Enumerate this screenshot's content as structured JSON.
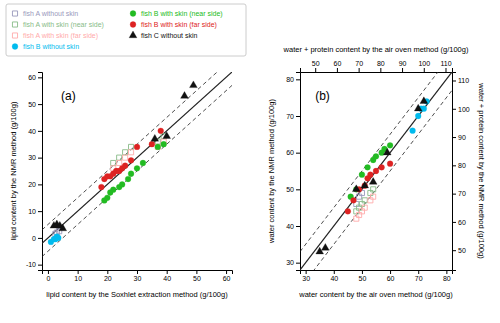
{
  "chart_data": [
    {
      "type": "scatter",
      "annotation": "(a)",
      "xlabel": "lipid content by the Soxhlet extraction method (g/100g)",
      "ylabel": "lipid content by the NMR method (g/100g)",
      "xlim": [
        -2,
        62
      ],
      "ylim": [
        -12,
        62
      ],
      "xticks": [
        0,
        10,
        20,
        30,
        40,
        50,
        60
      ],
      "yticks": [
        -10,
        0,
        10,
        20,
        30,
        40,
        50,
        60
      ],
      "legend": "upper left",
      "reference_lines": [
        {
          "slope": 1,
          "intercept": 0,
          "line_style": "solid"
        },
        {
          "slope": 1,
          "intercept": 5,
          "line_style": "dashed"
        },
        {
          "slope": 1,
          "intercept": -5,
          "line_style": "dashed"
        }
      ],
      "series": [
        {
          "name": "fish A without skin",
          "color": "#9999bb",
          "marker": "open-square",
          "x": [
            2.5,
            3.0,
            3.8
          ],
          "values": [
            1.5,
            2.0,
            2.5
          ]
        },
        {
          "name": "fish A with skin (near side)",
          "color": "#88bb88",
          "marker": "open-square",
          "x": [
            22,
            24,
            26,
            28,
            37,
            39
          ],
          "values": [
            28,
            30,
            32,
            34,
            36,
            38
          ]
        },
        {
          "name": "fish A with skin (far side)",
          "color": "#ffaaaa",
          "marker": "open-square",
          "x": [
            22,
            24,
            26,
            28,
            37,
            39
          ],
          "values": [
            26,
            28,
            30,
            32,
            34,
            36
          ]
        },
        {
          "name": "fish B without skin",
          "color": "#00bbee",
          "marker": "circle",
          "x": [
            1.0,
            2.0,
            2.5,
            3.0,
            3.5
          ],
          "values": [
            -1.5,
            -0.5,
            -0.5,
            0.5,
            0.0
          ]
        },
        {
          "name": "fish B with skin (near side)",
          "color": "#22bb22",
          "marker": "circle",
          "x": [
            19,
            20,
            21,
            22,
            24,
            25,
            27,
            28,
            30,
            32,
            37,
            39
          ],
          "values": [
            14,
            15,
            17,
            18,
            19,
            20,
            22,
            24,
            26,
            28,
            34,
            35
          ]
        },
        {
          "name": "fish B with skin (far side)",
          "color": "#dd2222",
          "marker": "circle",
          "x": [
            18,
            19,
            20,
            21,
            22,
            23,
            24,
            25,
            26,
            28,
            30,
            35,
            38
          ],
          "values": [
            19,
            22,
            23,
            23,
            24,
            25,
            25,
            26,
            27,
            29,
            34,
            35,
            40
          ]
        },
        {
          "name": "fish C without skin",
          "color": "#111111",
          "marker": "triangle",
          "x": [
            2.0,
            3.0,
            4.0,
            5.0,
            36,
            40,
            46,
            49
          ],
          "values": [
            4.5,
            5.0,
            4.5,
            3.5,
            37,
            38,
            53,
            57
          ]
        }
      ]
    },
    {
      "type": "scatter",
      "annotation": "(b)",
      "xlabel": "water content by the air oven method (g/100g)",
      "ylabel": "water content by the NMR method (g/100g)",
      "x2label": "water + protein content by the air oven method (g/100g)",
      "y2label": "water + protein content by the NMR method (g/100g)",
      "xlim": [
        28,
        82
      ],
      "ylim": [
        28,
        82
      ],
      "x2lim": [
        43,
        113
      ],
      "y2lim": [
        43,
        113
      ],
      "xticks": [
        30,
        40,
        50,
        60,
        70,
        80
      ],
      "yticks": [
        30,
        40,
        50,
        60,
        70,
        80
      ],
      "x2ticks": [
        50,
        60,
        70,
        80,
        90,
        100,
        110
      ],
      "y2ticks": [
        50,
        60,
        70,
        80,
        90,
        100,
        110
      ],
      "reference_lines": [
        {
          "slope": 1,
          "intercept": 0,
          "line_style": "solid"
        },
        {
          "slope": 1,
          "intercept": 5,
          "line_style": "dashed"
        },
        {
          "slope": 1,
          "intercept": -5,
          "line_style": "dashed"
        }
      ],
      "series": [
        {
          "color": "#9999bb",
          "marker": "open-square",
          "x": [
            48,
            49,
            50
          ],
          "values": [
            46,
            48,
            49
          ]
        },
        {
          "color": "#88bb88",
          "marker": "open-square",
          "x": [
            48,
            49,
            50,
            51,
            53,
            54
          ],
          "values": [
            44,
            45,
            46,
            47,
            49,
            50
          ]
        },
        {
          "color": "#ffaaaa",
          "marker": "open-square",
          "x": [
            48,
            49,
            50,
            51,
            53,
            54
          ],
          "values": [
            42,
            43,
            44,
            45,
            47,
            48
          ]
        },
        {
          "color": "#00bbee",
          "marker": "circle",
          "x": [
            68,
            70,
            71,
            72,
            73
          ],
          "values": [
            66,
            70,
            72,
            72,
            74
          ]
        },
        {
          "color": "#22bb22",
          "marker": "circle",
          "x": [
            46,
            48,
            50,
            52,
            54,
            55,
            57,
            58,
            60
          ],
          "values": [
            48,
            50,
            54,
            56,
            58,
            59,
            60,
            61,
            62
          ]
        },
        {
          "color": "#dd2222",
          "marker": "circle",
          "x": [
            45,
            47,
            49,
            51,
            52,
            53,
            55,
            57,
            60
          ],
          "values": [
            44,
            47,
            50,
            51,
            53,
            54,
            55,
            56,
            57
          ]
        },
        {
          "color": "#111111",
          "marker": "triangle",
          "x": [
            35,
            37,
            48,
            51,
            54,
            59,
            70,
            72
          ],
          "values": [
            33,
            34,
            50,
            51,
            52,
            60,
            72,
            74
          ]
        }
      ]
    }
  ]
}
